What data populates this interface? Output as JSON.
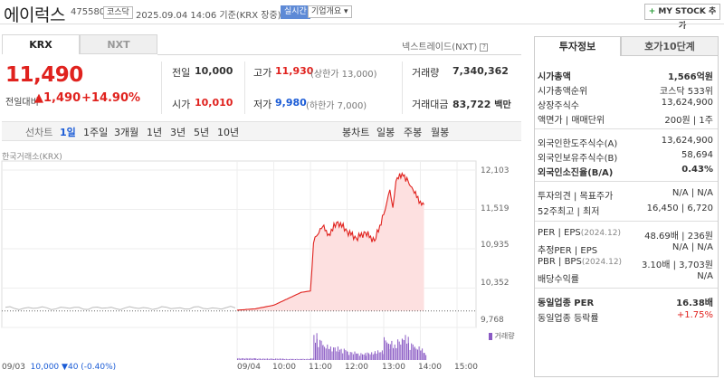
{
  "header": {
    "title": "에이럭스",
    "code": "475580",
    "market": "코스닥",
    "datetime": "2025.09.04 14:06 기준(KRX 장중)",
    "realtime": "실시간",
    "company_overview": "기업개요 ▾",
    "mystock_label": "MY STOCK 추가"
  },
  "market_tabs": [
    "KRX",
    "NXT"
  ],
  "nxt_note": "넥스트레이드(NXT)",
  "quote": {
    "price": "11,490",
    "change_label": "전일대비",
    "change_amount": "▲1,490",
    "change_pct": "+14.90%",
    "prev_close_label": "전일",
    "prev_close": "10,000",
    "open_label": "시가",
    "open": "10,010",
    "high_label": "고가",
    "high": "11,930",
    "upper_limit": "(상한가 13,000)",
    "low_label": "저가",
    "low": "9,980",
    "lower_limit": "(하한가 7,000)",
    "volume_label": "거래량",
    "volume": "7,340,362",
    "value_label": "거래대금",
    "value": "83,722",
    "value_unit": "백만"
  },
  "chart_controls": {
    "line_chart": "선차트",
    "periods": [
      "1일",
      "1주일",
      "3개월",
      "1년",
      "3년",
      "5년",
      "10년"
    ],
    "selected": "1일",
    "candle_chart": "봉차트",
    "candle_periods": [
      "일봉",
      "주봉",
      "월봉"
    ]
  },
  "chart_data": {
    "type": "line",
    "source_label": "한국거래소(KRX)",
    "y_ticks": [
      "12,103",
      "11,519",
      "10,935",
      "10,352",
      "9,768"
    ],
    "x_ticks": [
      "09/04",
      "10:00",
      "11:00",
      "12:00",
      "13:00",
      "14:00",
      "15:00"
    ],
    "ylim": [
      9768,
      12103
    ],
    "previous_close": 10000,
    "prev_day": {
      "label": "09/03",
      "close": "10,000",
      "change": "▼40",
      "pct": "(-0.40%)"
    },
    "x": [
      "09:00",
      "09:30",
      "10:00",
      "10:15",
      "10:30",
      "10:45",
      "11:00",
      "11:05",
      "11:10",
      "11:20",
      "11:30",
      "11:45",
      "12:00",
      "12:15",
      "12:30",
      "12:45",
      "13:00",
      "13:05",
      "13:10",
      "13:15",
      "13:20",
      "13:30",
      "13:40",
      "13:50",
      "14:00",
      "14:06"
    ],
    "y": [
      10010,
      10030,
      10080,
      10140,
      10200,
      10260,
      10280,
      10950,
      11050,
      11180,
      11080,
      11250,
      11120,
      11020,
      11100,
      10980,
      11350,
      11520,
      11700,
      11450,
      11820,
      11930,
      11820,
      11650,
      11540,
      11490
    ],
    "volume_label": "거래량",
    "volume": [
      5,
      4,
      4,
      3,
      3,
      3,
      5,
      70,
      55,
      40,
      35,
      30,
      22,
      18,
      20,
      25,
      60,
      45,
      50,
      40,
      55,
      65,
      45,
      35,
      30,
      20
    ]
  },
  "right_panel": {
    "tabs": [
      "투자정보",
      "호가10단계"
    ],
    "rows1": [
      {
        "label": "시가총액",
        "value": "1,566억원",
        "bold": true
      },
      {
        "label": "시가총액순위",
        "value": "코스닥 533위"
      },
      {
        "label": "상장주식수",
        "value": "13,624,900"
      },
      {
        "label": "액면가 | 매매단위",
        "value": "200원 | 1주"
      }
    ],
    "rows2": [
      {
        "label": "외국인한도주식수(A)",
        "value": "13,624,900"
      },
      {
        "label": "외국인보유주식수(B)",
        "value": "58,694"
      },
      {
        "label": "외국인소진율(B/A)",
        "value": "0.43%",
        "bold": true
      }
    ],
    "rows3": [
      {
        "label": "투자의견 | 목표주가",
        "value": "N/A | N/A"
      },
      {
        "label": "52주최고 | 최저",
        "value": "16,450 | 6,720"
      }
    ],
    "rows4": [
      {
        "label": "PER | EPS",
        "tag": "(2024.12)",
        "value": "48.69배 | 236원"
      },
      {
        "label": "추정PER | EPS",
        "value": "N/A | N/A"
      },
      {
        "label": "PBR | BPS",
        "tag": "(2024.12)",
        "value": "3.10배 | 3,703원"
      },
      {
        "label": "배당수익률",
        "value": "N/A"
      }
    ],
    "rows5": [
      {
        "label": "동일업종 PER",
        "value": "16.38배",
        "bold": true
      },
      {
        "label": "동일업종 등락률",
        "value": "+1.75%",
        "red": true
      }
    ]
  }
}
